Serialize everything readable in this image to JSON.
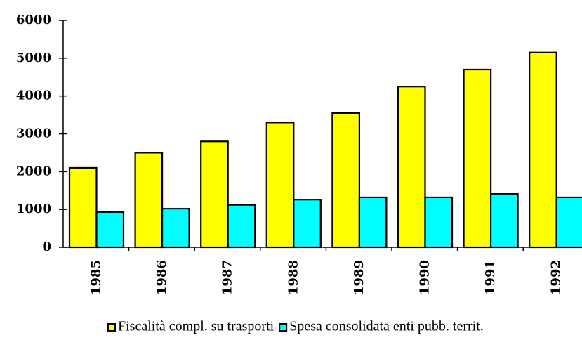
{
  "chart_data": {
    "type": "bar",
    "categories": [
      "1985",
      "1986",
      "1987",
      "1988",
      "1989",
      "1990",
      "1991",
      "1992"
    ],
    "series": [
      {
        "name": "Fiscalità compl. su trasporti",
        "color": "#ffff00",
        "values": [
          2100,
          2500,
          2800,
          3300,
          3550,
          4250,
          4700,
          5150
        ]
      },
      {
        "name": "Spesa consolidata enti pubb. territ.",
        "color": "#00ffff",
        "values": [
          930,
          1020,
          1120,
          1260,
          1320,
          1320,
          1410,
          1320
        ]
      }
    ],
    "ylim": [
      0,
      6000
    ],
    "yticks": [
      0,
      1000,
      2000,
      3000,
      4000,
      5000,
      6000
    ],
    "grid": false,
    "legend": "bottom"
  }
}
